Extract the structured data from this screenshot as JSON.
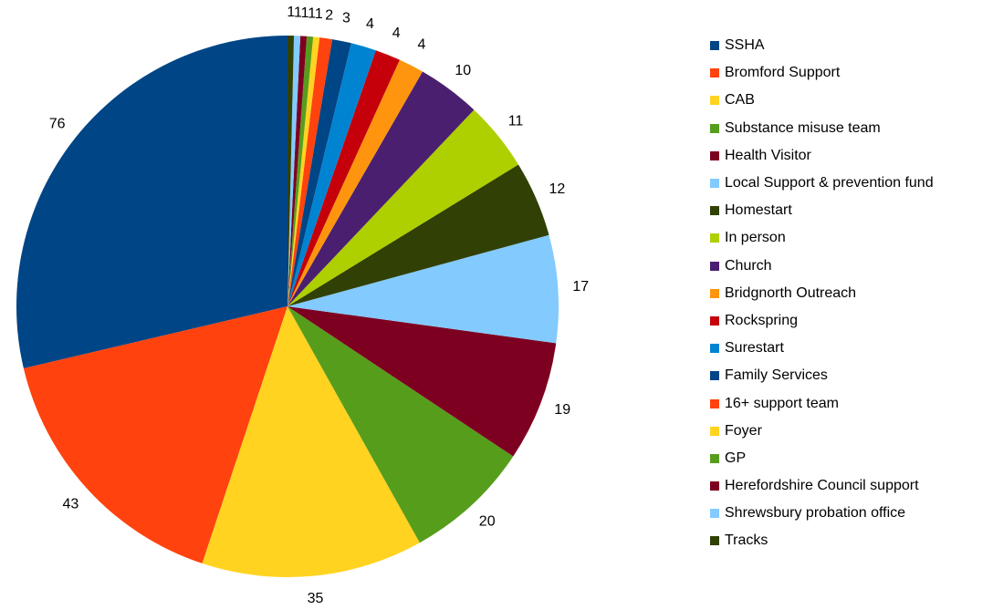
{
  "chart_data": {
    "type": "pie",
    "title": "",
    "series": [
      {
        "name": "SSHA",
        "value": 76,
        "color": "#004586"
      },
      {
        "name": "Bromford Support",
        "value": 43,
        "color": "#ff420e"
      },
      {
        "name": "CAB",
        "value": 35,
        "color": "#ffd320"
      },
      {
        "name": "Substance misuse team",
        "value": 20,
        "color": "#579d1c"
      },
      {
        "name": "Health Visitor",
        "value": 19,
        "color": "#7e0021"
      },
      {
        "name": "Local Support & prevention fund",
        "value": 17,
        "color": "#83caff"
      },
      {
        "name": "Homestart",
        "value": 12,
        "color": "#314004"
      },
      {
        "name": "In person",
        "value": 11,
        "color": "#aecf00"
      },
      {
        "name": "Church",
        "value": 10,
        "color": "#4b1f6f"
      },
      {
        "name": "Bridgnorth Outreach",
        "value": 4,
        "color": "#ff950e"
      },
      {
        "name": "Rockspring",
        "value": 4,
        "color": "#c5000b"
      },
      {
        "name": "Surestart",
        "value": 4,
        "color": "#0084d1"
      },
      {
        "name": "Family Services",
        "value": 3,
        "color": "#004586"
      },
      {
        "name": "16+ support team",
        "value": 2,
        "color": "#ff420e"
      },
      {
        "name": "Foyer",
        "value": 1,
        "color": "#ffd320"
      },
      {
        "name": "GP",
        "value": 1,
        "color": "#579d1c"
      },
      {
        "name": "Herefordshire Council support",
        "value": 1,
        "color": "#7e0021"
      },
      {
        "name": "Shrewsbury probation office",
        "value": 1,
        "color": "#83caff"
      },
      {
        "name": "Tracks",
        "value": 1,
        "color": "#314004"
      }
    ],
    "direction": "counterclockwise",
    "legend": "right"
  }
}
